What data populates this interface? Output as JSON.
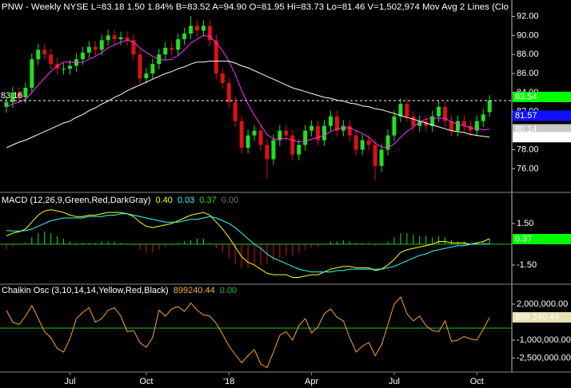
{
  "chart_data": [
    {
      "type": "candlestick",
      "title": "PNW - Weekly  NYSE  L=83.18  1.50  1.84%  B=83.52  A=94.90  O=81.95  Hi=83.73  Lo=81.46  V=1,502,974  Mov Avg 2 Lines (Clo",
      "categories": [
        null,
        null,
        null,
        null,
        null,
        null,
        null,
        null,
        null,
        null,
        "Jul",
        null,
        null,
        null,
        null,
        null,
        null,
        null,
        null,
        null,
        null,
        null,
        "Oct",
        null,
        null,
        null,
        null,
        null,
        null,
        null,
        null,
        null,
        null,
        null,
        null,
        "'18",
        null,
        null,
        null,
        null,
        null,
        null,
        null,
        null,
        null,
        null,
        null,
        null,
        "Apr",
        null,
        null,
        null,
        null,
        null,
        null,
        null,
        null,
        null,
        null,
        null,
        null,
        "Jul",
        null,
        null,
        null,
        null,
        null,
        null,
        null,
        null,
        null,
        null,
        null,
        null,
        "Oct",
        null,
        null
      ],
      "open": [
        82.5,
        83.0,
        84.0,
        83.5,
        84.5,
        87.5,
        88.5,
        88.0,
        87.0,
        86.5,
        86.5,
        86.8,
        87.5,
        88.2,
        88.8,
        88.5,
        89.5,
        90.0,
        89.6,
        89.8,
        89.5,
        88.0,
        85.5,
        86.0,
        87.0,
        88.0,
        88.7,
        88.5,
        89.6,
        90.2,
        91.0,
        90.5,
        91.0,
        89.5,
        86.0,
        85.0,
        83.0,
        81.0,
        78.2,
        79.5,
        80.0,
        78.5,
        77.0,
        79.0,
        80.0,
        79.5,
        77.5,
        78.5,
        80.0,
        80.5,
        79.0,
        80.5,
        81.5,
        80.0,
        80.5,
        79.5,
        78.0,
        79.0,
        78.5,
        76.3,
        78.0,
        79.5,
        81.5,
        82.8,
        81.5,
        80.5,
        81.0,
        80.5,
        81.5,
        82.5,
        81.0,
        80.0,
        81.0,
        80.5,
        80.0,
        81.0,
        81.95
      ],
      "high": [
        83.6,
        84.6,
        84.6,
        85.1,
        88.1,
        89.1,
        89.1,
        88.6,
        87.6,
        87.1,
        87.4,
        88.1,
        88.8,
        89.4,
        89.4,
        90.1,
        90.6,
        90.6,
        90.4,
        90.4,
        90.1,
        88.6,
        86.6,
        87.6,
        88.6,
        89.3,
        89.3,
        90.2,
        90.8,
        92.0,
        91.6,
        91.6,
        91.6,
        90.1,
        86.6,
        85.6,
        83.6,
        81.6,
        80.1,
        80.6,
        80.6,
        79.1,
        79.6,
        80.6,
        80.6,
        80.1,
        79.1,
        80.6,
        81.1,
        81.1,
        81.1,
        82.1,
        82.1,
        81.1,
        81.1,
        80.1,
        79.6,
        79.6,
        79.1,
        78.6,
        80.1,
        82.1,
        83.4,
        83.4,
        82.1,
        81.6,
        81.6,
        82.1,
        83.1,
        83.1,
        81.6,
        81.6,
        81.6,
        81.1,
        81.6,
        82.3,
        83.73
      ],
      "low": [
        81.9,
        82.4,
        82.9,
        82.9,
        83.9,
        86.9,
        87.4,
        86.4,
        85.9,
        85.9,
        85.9,
        86.2,
        86.9,
        87.6,
        87.9,
        87.9,
        88.9,
        89.0,
        89.0,
        88.9,
        87.4,
        84.9,
        84.9,
        85.4,
        86.4,
        87.4,
        87.9,
        87.9,
        89.0,
        89.6,
        89.9,
        89.9,
        88.9,
        85.4,
        84.4,
        82.4,
        80.4,
        77.6,
        77.6,
        78.9,
        77.9,
        75.0,
        76.4,
        78.4,
        78.9,
        76.9,
        76.9,
        77.9,
        79.4,
        78.4,
        78.4,
        79.9,
        79.4,
        79.4,
        78.9,
        77.4,
        77.4,
        77.9,
        74.8,
        75.7,
        77.4,
        78.9,
        80.9,
        80.9,
        79.9,
        79.9,
        79.9,
        79.9,
        80.9,
        80.4,
        79.4,
        79.4,
        79.9,
        79.4,
        79.4,
        80.4,
        81.46
      ],
      "close": [
        83.0,
        84.0,
        83.5,
        84.5,
        87.5,
        88.5,
        88.0,
        87.0,
        86.5,
        86.5,
        86.8,
        87.5,
        88.2,
        88.8,
        88.5,
        89.5,
        90.0,
        89.6,
        89.8,
        89.5,
        88.0,
        85.5,
        86.0,
        87.0,
        88.0,
        88.7,
        88.5,
        89.6,
        90.2,
        91.0,
        90.5,
        91.0,
        89.5,
        86.0,
        85.0,
        83.0,
        81.0,
        78.2,
        79.5,
        80.0,
        78.5,
        77.0,
        79.0,
        80.0,
        79.5,
        77.5,
        78.5,
        80.0,
        80.5,
        79.0,
        80.5,
        81.5,
        80.0,
        80.5,
        79.5,
        78.0,
        79.0,
        78.5,
        76.3,
        78.0,
        79.5,
        81.5,
        82.8,
        81.5,
        80.5,
        81.0,
        80.5,
        81.5,
        82.5,
        81.0,
        80.0,
        81.0,
        80.5,
        80.0,
        81.0,
        81.7,
        83.18
      ],
      "up_color": "#22e022",
      "down_color": "#e01010",
      "series": [
        {
          "color": "#ff33ff",
          "values": [
            82.5,
            82.8,
            83.0,
            83.3,
            84.0,
            84.8,
            85.5,
            86.2,
            86.8,
            87.2,
            87.2,
            87.1,
            87.2,
            87.5,
            87.8,
            88.2,
            88.7,
            89.0,
            89.3,
            89.5,
            89.3,
            88.7,
            88.2,
            87.8,
            87.5,
            87.4,
            87.5,
            87.9,
            88.5,
            89.2,
            89.6,
            90.0,
            89.9,
            89.2,
            88.4,
            87.3,
            85.9,
            84.2,
            82.8,
            81.6,
            80.6,
            79.6,
            79.1,
            79.1,
            79.2,
            79.0,
            78.8,
            78.9,
            79.1,
            79.3,
            79.5,
            79.9,
            80.2,
            80.3,
            80.3,
            80.0,
            79.7,
            79.3,
            78.7,
            78.3,
            78.2,
            78.6,
            79.3,
            79.9,
            80.4,
            80.9,
            81.2,
            81.3,
            81.3,
            81.3,
            80.9,
            80.7,
            80.5,
            80.3,
            80.2,
            80.1,
            80.14
          ]
        },
        {
          "color": "#ffffff",
          "values": [
            78.2,
            78.5,
            78.8,
            79.0,
            79.3,
            79.6,
            79.9,
            80.2,
            80.5,
            80.8,
            81.0,
            81.4,
            81.7,
            82.1,
            82.4,
            82.8,
            83.1,
            83.5,
            83.8,
            84.2,
            84.5,
            84.8,
            85.1,
            85.4,
            85.7,
            86.0,
            86.2,
            86.5,
            86.7,
            87.0,
            87.2,
            87.2,
            87.3,
            87.3,
            87.3,
            87.3,
            87.1,
            86.8,
            86.6,
            86.3,
            86.0,
            85.7,
            85.4,
            85.1,
            84.8,
            84.5,
            84.3,
            84.1,
            83.9,
            83.7,
            83.5,
            83.4,
            83.2,
            83.1,
            82.9,
            82.8,
            82.6,
            82.5,
            82.3,
            82.2,
            82.0,
            81.8,
            81.6,
            81.4,
            81.2,
            81.0,
            80.8,
            80.6,
            80.4,
            80.2,
            80.0,
            79.9,
            79.8,
            79.6,
            79.5,
            79.4,
            79.32
          ]
        }
      ],
      "reference_line": 83.16,
      "markers": [
        {
          "value": 83.54,
          "color": "#00ff00"
        },
        {
          "value": 81.57,
          "color": "#1010ff"
        },
        {
          "value": 80.14,
          "color": "#c8c8c8"
        },
        {
          "value": 79.32,
          "color": "#ffffff"
        }
      ],
      "ylim": [
        73.6,
        93.3
      ],
      "yticks": [
        {
          "value": 76,
          "label": "76.00"
        },
        {
          "value": 78,
          "label": "78.00"
        },
        {
          "value": 80,
          "label": "80.00"
        },
        {
          "value": 82,
          "label": "82.00"
        },
        {
          "value": 84,
          "label": "84.00"
        },
        {
          "value": 86,
          "label": "86.00"
        },
        {
          "value": 88,
          "label": "88.00"
        },
        {
          "value": 90,
          "label": "90.00"
        },
        {
          "value": 92,
          "label": "92.00"
        }
      ]
    },
    {
      "type": "line",
      "title": "MACD (12,26,9,Green,Red,DarkGray)",
      "header_values": [
        {
          "label": "0.40",
          "color": "#ffff00"
        },
        {
          "label": "0.03",
          "color": "#33ffff"
        },
        {
          "label": "0.37",
          "color": "#22e022"
        },
        {
          "label": "0.00",
          "color": "#777777"
        }
      ],
      "series": [
        {
          "color": "#ffff00",
          "values": [
            0.6,
            0.8,
            0.9,
            1.1,
            1.6,
            2.1,
            2.4,
            2.5,
            2.4,
            2.3,
            2.1,
            2.0,
            2.0,
            2.1,
            2.1,
            2.2,
            2.3,
            2.3,
            2.3,
            2.2,
            2.0,
            1.6,
            1.3,
            1.2,
            1.3,
            1.4,
            1.5,
            1.7,
            1.9,
            2.1,
            2.2,
            2.3,
            2.1,
            1.6,
            1.1,
            0.5,
            -0.2,
            -0.9,
            -1.3,
            -1.5,
            -1.8,
            -2.1,
            -2.2,
            -2.2,
            -2.2,
            -2.4,
            -2.4,
            -2.3,
            -2.2,
            -2.2,
            -2.0,
            -1.8,
            -1.7,
            -1.6,
            -1.6,
            -1.7,
            -1.7,
            -1.7,
            -1.9,
            -1.8,
            -1.5,
            -1.1,
            -0.6,
            -0.4,
            -0.3,
            -0.2,
            -0.1,
            0.0,
            0.2,
            0.2,
            0.1,
            0.1,
            0.1,
            0.0,
            0.1,
            0.2,
            0.4
          ]
        },
        {
          "color": "#33ffff",
          "values": [
            1.0,
            0.96,
            0.95,
            0.98,
            1.1,
            1.3,
            1.5,
            1.7,
            1.8,
            1.9,
            1.9,
            1.9,
            1.9,
            2.0,
            2.0,
            2.0,
            2.1,
            2.1,
            2.2,
            2.2,
            2.1,
            2.0,
            1.9,
            1.8,
            1.7,
            1.6,
            1.6,
            1.6,
            1.7,
            1.8,
            1.8,
            1.9,
            2.0,
            1.9,
            1.7,
            1.5,
            1.2,
            0.8,
            0.4,
            0.0,
            -0.3,
            -0.7,
            -1.0,
            -1.2,
            -1.4,
            -1.6,
            -1.8,
            -1.9,
            -2.0,
            -2.0,
            -2.0,
            -2.0,
            -1.9,
            -1.9,
            -1.8,
            -1.8,
            -1.8,
            -1.8,
            -1.8,
            -1.8,
            -1.7,
            -1.6,
            -1.4,
            -1.2,
            -1.0,
            -0.8,
            -0.7,
            -0.5,
            -0.4,
            -0.3,
            -0.2,
            -0.1,
            -0.1,
            0.0,
            0.0,
            0.0,
            0.03
          ]
        }
      ],
      "histogram": {
        "up_color": "#22e022",
        "down_color": "#e01010",
        "values": [
          -0.4,
          -0.16,
          -0.05,
          0.12,
          0.5,
          0.8,
          0.9,
          0.8,
          0.6,
          0.4,
          0.2,
          0.1,
          0.1,
          0.1,
          0.1,
          0.2,
          0.2,
          0.2,
          0.1,
          0.0,
          -0.1,
          -0.4,
          -0.6,
          -0.6,
          -0.4,
          -0.2,
          -0.1,
          0.1,
          0.2,
          0.3,
          0.4,
          0.4,
          0.1,
          -0.3,
          -0.6,
          -1.0,
          -1.4,
          -1.7,
          -1.7,
          -1.5,
          -1.5,
          -1.4,
          -1.2,
          -1.0,
          -0.8,
          -0.8,
          -0.6,
          -0.4,
          -0.2,
          -0.2,
          0.0,
          0.2,
          0.2,
          0.3,
          0.2,
          0.1,
          0.1,
          0.1,
          -0.1,
          0.0,
          0.2,
          0.5,
          0.8,
          0.8,
          0.7,
          0.6,
          0.6,
          0.5,
          0.6,
          0.5,
          0.3,
          0.2,
          0.2,
          0.0,
          0.1,
          0.2,
          0.37
        ]
      },
      "zero_color": "#22c022",
      "markers": [
        {
          "value": 0.37,
          "label": "0.37",
          "color": "#00ff00"
        }
      ],
      "ylim": [
        -2.83,
        3.63
      ],
      "yticks": [
        {
          "value": 1.5,
          "label": "1.50"
        },
        {
          "value": -1.5,
          "label": "-1.50"
        }
      ]
    },
    {
      "type": "line",
      "title": "Chaikin Osc (3,10,14,14,Yellow,Red,Black)",
      "header_values": [
        {
          "label": "899240.44",
          "color": "#ffb030"
        },
        {
          "label": "0.00",
          "color": "#22c022"
        }
      ],
      "series": [
        {
          "color": "#ffa030",
          "values": [
            1500000,
            500000,
            300000,
            1000000,
            1900000,
            800000,
            -300000,
            -800000,
            -1700000,
            -2000000,
            -900000,
            800000,
            1300000,
            1700000,
            500000,
            800000,
            1500000,
            1700000,
            1000000,
            -300000,
            -200000,
            -1200000,
            -1600000,
            -800000,
            1500000,
            1000000,
            1600000,
            1800000,
            1400000,
            2100000,
            1500000,
            1100000,
            1000000,
            400000,
            -500000,
            -1500000,
            -2200000,
            -2900000,
            -2300000,
            -1800000,
            -3000000,
            -3300000,
            -2000000,
            -600000,
            -300000,
            -1000000,
            200000,
            800000,
            -400000,
            100000,
            1200000,
            1600000,
            900000,
            600000,
            -800000,
            -2000000,
            -1500000,
            -1200000,
            -2300000,
            -1400000,
            300000,
            2000000,
            2600000,
            1200000,
            600000,
            1000000,
            200000,
            -200000,
            -300000,
            600000,
            -1100000,
            -1000000,
            -700000,
            -900000,
            -1000000,
            -100000,
            899240.44
          ]
        }
      ],
      "zero_color": "#22c022",
      "markers": [
        {
          "value": 899240.44,
          "label": "899,240.44",
          "color": "#e8e0b0"
        }
      ],
      "ylim": [
        -3600000,
        3533000
      ],
      "yticks": [
        {
          "value": 2000000,
          "label": "2,000,000.00"
        },
        {
          "value": -1000000,
          "label": "-1,000,000.00"
        },
        {
          "value": -2500000,
          "label": "-2,500,000.00"
        }
      ]
    }
  ]
}
